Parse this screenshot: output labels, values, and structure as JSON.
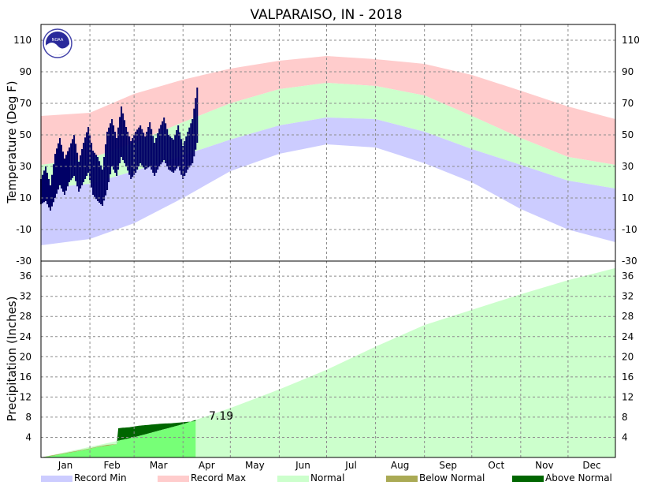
{
  "chart_data": [
    {
      "type": "area",
      "title": "VALPARAISO, IN - 2018",
      "ylabel": "Temperature (Deg F)",
      "ylim": [
        -30,
        120
      ],
      "yticks": [
        110,
        90,
        70,
        50,
        30,
        10,
        -10,
        -30
      ],
      "months": [
        "Jan",
        "Feb",
        "Mar",
        "Apr",
        "May",
        "Jun",
        "Jul",
        "Aug",
        "Sep",
        "Oct",
        "Nov",
        "Dec"
      ],
      "grid": true,
      "series": [
        {
          "name": "Record Max",
          "color": "#ffcccc",
          "x": [
            1,
            32,
            60,
            91,
            121,
            152,
            182,
            213,
            244,
            274,
            305,
            335,
            365
          ],
          "values": [
            62,
            64,
            76,
            85,
            92,
            97,
            100,
            98,
            95,
            88,
            78,
            68,
            60
          ]
        },
        {
          "name": "Normal",
          "color": "#ccffcc",
          "x": [
            1,
            32,
            60,
            91,
            121,
            152,
            182,
            213,
            244,
            274,
            305,
            335,
            365
          ],
          "normal_high": [
            31,
            35,
            45,
            58,
            70,
            79,
            83,
            81,
            75,
            62,
            48,
            36,
            31
          ],
          "normal_low": [
            16,
            19,
            27,
            37,
            47,
            56,
            61,
            60,
            52,
            41,
            31,
            21,
            16
          ]
        },
        {
          "name": "Record Min",
          "color": "#ccccff",
          "x": [
            1,
            32,
            60,
            91,
            121,
            152,
            182,
            213,
            244,
            274,
            305,
            335,
            365
          ],
          "values": [
            -20,
            -16,
            -6,
            10,
            27,
            38,
            44,
            42,
            32,
            20,
            3,
            -10,
            -18
          ]
        },
        {
          "name": "Observed",
          "color": "#000066",
          "x": [
            1,
            4,
            7,
            10,
            13,
            16,
            19,
            22,
            25,
            28,
            31,
            34,
            37,
            40,
            43,
            46,
            49,
            52,
            55,
            58,
            61,
            64,
            67,
            70,
            73,
            76,
            79,
            82,
            85,
            88,
            91,
            94,
            97,
            100
          ],
          "high": [
            22,
            30,
            18,
            38,
            48,
            35,
            42,
            50,
            33,
            45,
            55,
            40,
            36,
            28,
            52,
            60,
            48,
            68,
            55,
            46,
            52,
            56,
            49,
            58,
            45,
            54,
            61,
            50,
            47,
            56,
            43,
            52,
            60,
            80
          ],
          "low": [
            6,
            8,
            2,
            10,
            18,
            12,
            20,
            24,
            14,
            20,
            26,
            12,
            8,
            5,
            15,
            30,
            24,
            36,
            30,
            22,
            26,
            32,
            28,
            30,
            24,
            30,
            34,
            28,
            26,
            30,
            22,
            28,
            32,
            45
          ]
        }
      ]
    },
    {
      "type": "area",
      "ylabel": "Precipitation (Inches)",
      "ylim": [
        0,
        39
      ],
      "yticks": [
        36,
        32,
        28,
        24,
        20,
        16,
        12,
        8,
        4
      ],
      "last_value_label": "7.19",
      "series": [
        {
          "name": "Normal",
          "color": "#ccffcc",
          "x": [
            1,
            32,
            60,
            91,
            121,
            152,
            182,
            213,
            244,
            274,
            305,
            335,
            365
          ],
          "values": [
            0,
            2.1,
            4.0,
            6.6,
            9.8,
            13.5,
            17.4,
            22.0,
            26.3,
            29.3,
            32.4,
            35.2,
            37.6
          ]
        },
        {
          "name": "Below Normal",
          "color": "#aaaa55",
          "x": [
            1,
            8,
            15,
            22,
            29,
            36,
            43,
            50
          ],
          "values": [
            0,
            0.4,
            0.8,
            1.2,
            1.6,
            2.1,
            2.5,
            2.7
          ]
        },
        {
          "name": "Above Normal",
          "color": "#006600",
          "x": [
            1,
            8,
            15,
            22,
            29,
            36,
            43,
            49,
            50,
            53,
            57,
            63,
            70,
            77,
            84,
            91,
            95,
            99
          ],
          "values": [
            0,
            0.3,
            0.7,
            1.1,
            1.5,
            2.0,
            2.3,
            2.6,
            5.8,
            5.9,
            6.0,
            6.3,
            6.5,
            6.7,
            6.8,
            7.0,
            7.1,
            7.19
          ]
        }
      ]
    }
  ],
  "legend": [
    {
      "label": "Record Min",
      "color": "#ccccff"
    },
    {
      "label": "Record Max",
      "color": "#ffcccc"
    },
    {
      "label": "Normal",
      "color": "#ccffcc"
    },
    {
      "label": "Below Normal",
      "color": "#aaaa55"
    },
    {
      "label": "Above Normal",
      "color": "#006600"
    }
  ],
  "logo": {
    "text": "NOAA"
  }
}
